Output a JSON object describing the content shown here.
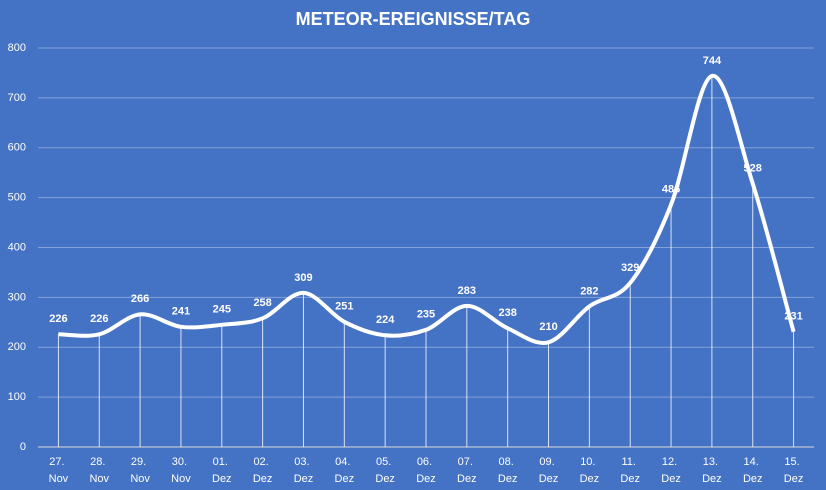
{
  "chart_data": {
    "type": "line",
    "title": "METEOR-EREIGNISSE/TAG",
    "categories": [
      "27. Nov",
      "28. Nov",
      "29. Nov",
      "30. Nov",
      "01. Dez",
      "02. Dez",
      "03. Dez",
      "04. Dez",
      "05. Dez",
      "06. Dez",
      "07. Dez",
      "08. Dez",
      "09. Dez",
      "10. Dez",
      "11. Dez",
      "12. Dez",
      "13. Dez",
      "14. Dez",
      "15. Dez"
    ],
    "values": [
      226,
      226,
      266,
      241,
      245,
      258,
      309,
      251,
      224,
      235,
      283,
      238,
      210,
      282,
      329,
      486,
      744,
      528,
      231
    ],
    "color": "#ffffff",
    "background": "#4472c4",
    "ylim": [
      0,
      800
    ],
    "yticks": [
      0,
      100,
      200,
      300,
      400,
      500,
      600,
      700,
      800
    ],
    "grid": true,
    "smooth": true,
    "drop_lines": true
  }
}
